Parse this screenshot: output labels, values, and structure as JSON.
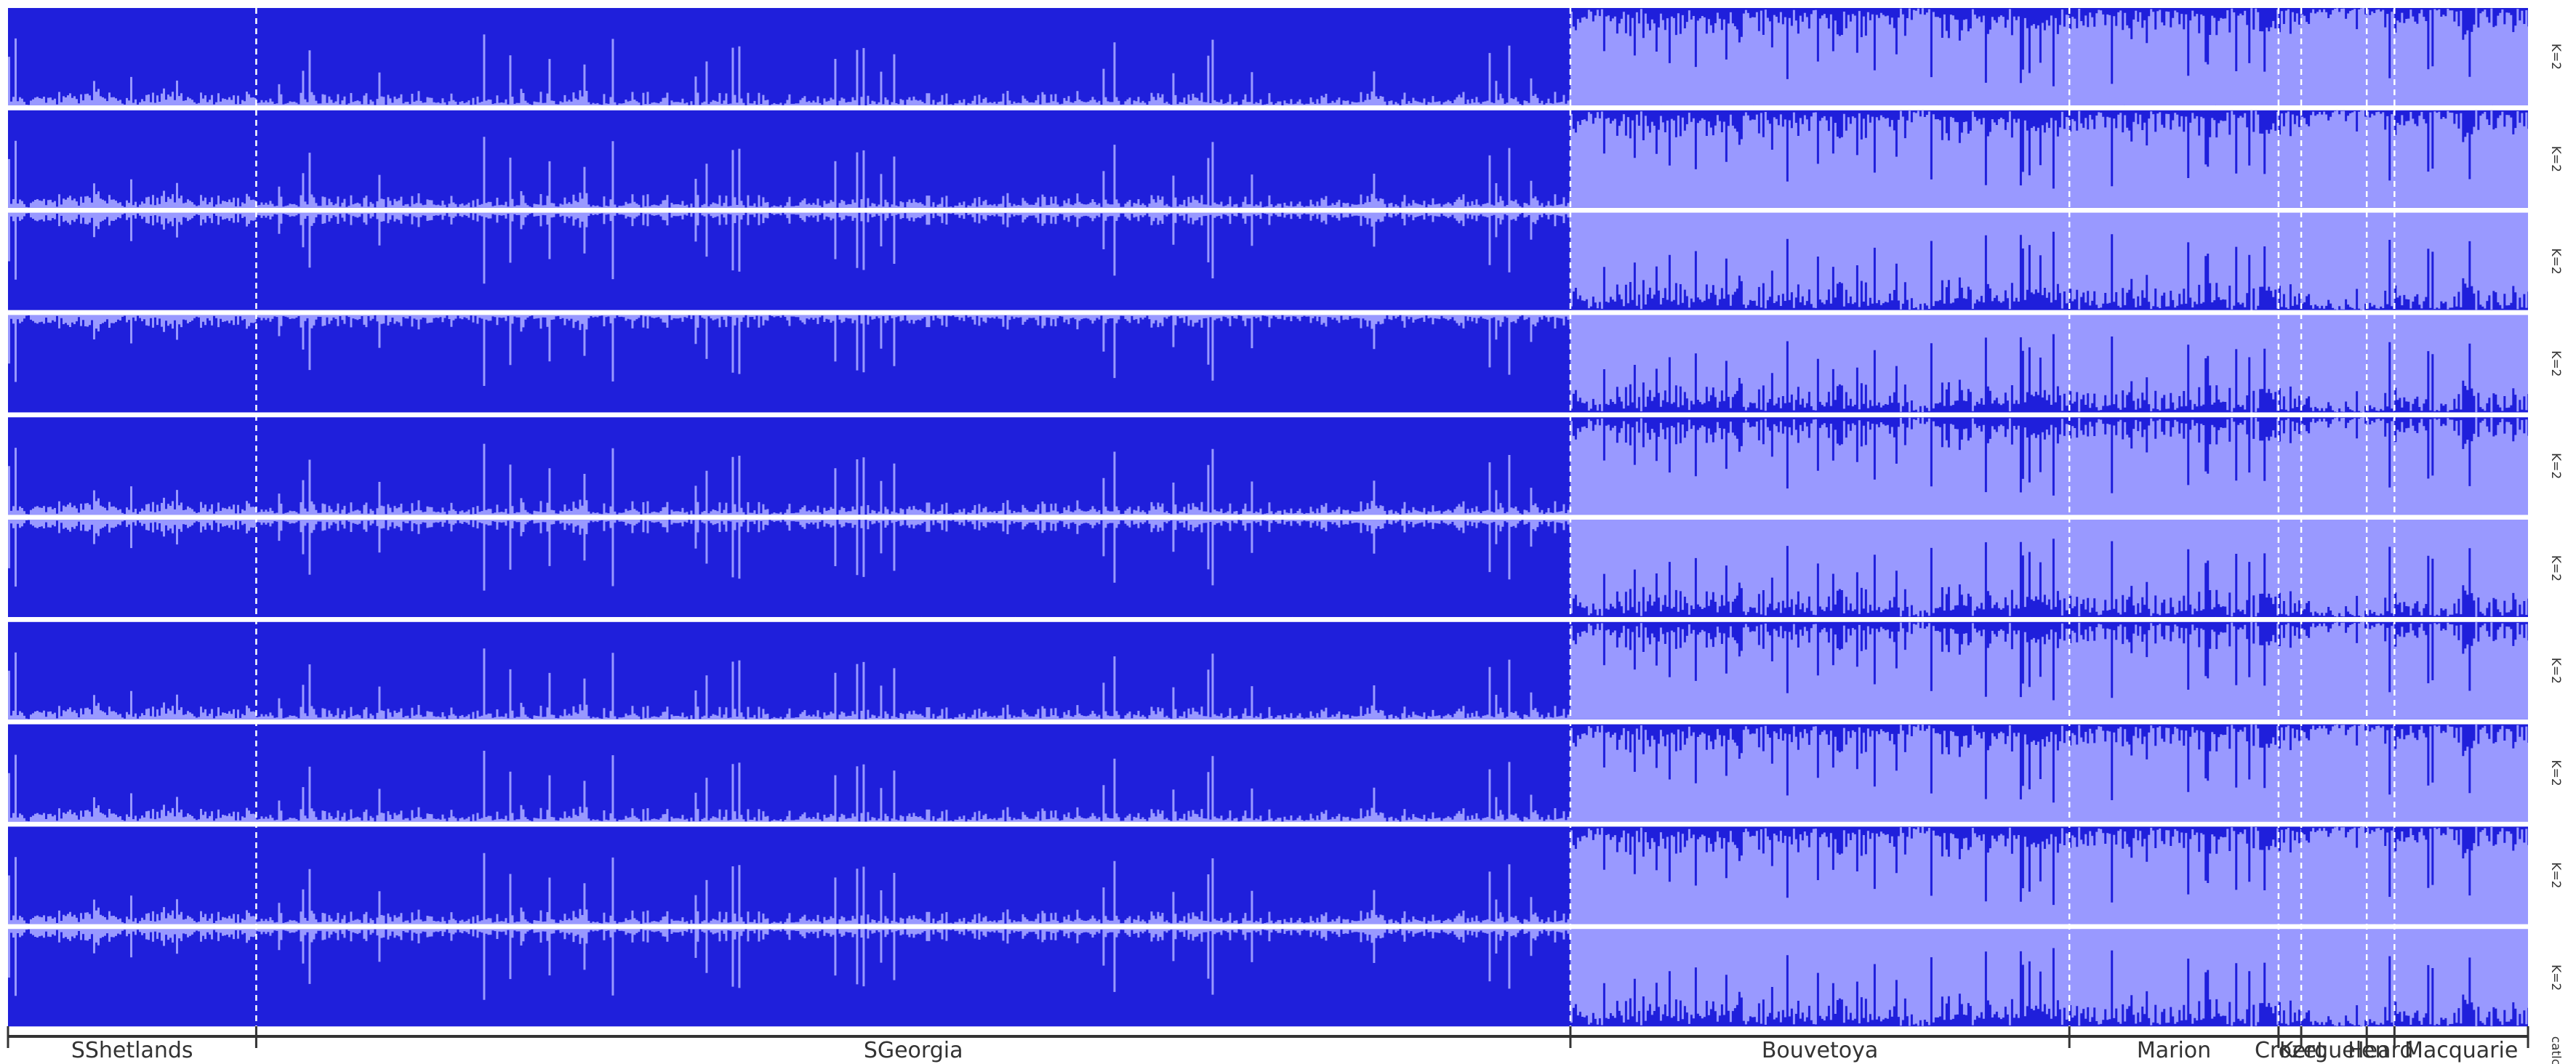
{
  "chart_data": {
    "type": "bar",
    "subtype": "stacked-admixture",
    "colors": {
      "cluster1": "#1f1fdb",
      "cluster2": "#9999ff",
      "separator": "#ffffff",
      "axis": "#333333"
    },
    "rows": [
      {
        "label": "K=2",
        "base_cluster": "cluster1",
        "grid": false
      },
      {
        "label": "K=2",
        "base_cluster": "cluster1",
        "grid": false
      },
      {
        "label": "K=2",
        "base_cluster": "cluster2",
        "grid": false
      },
      {
        "label": "K=2",
        "base_cluster": "cluster2",
        "grid": false
      },
      {
        "label": "K=2",
        "base_cluster": "cluster1",
        "grid": false
      },
      {
        "label": "K=2",
        "base_cluster": "cluster2",
        "grid": false
      },
      {
        "label": "K=2",
        "base_cluster": "cluster1",
        "grid": false
      },
      {
        "label": "K=2",
        "base_cluster": "cluster1",
        "grid": false
      },
      {
        "label": "K=2",
        "base_cluster": "cluster1",
        "grid": false
      },
      {
        "label": "K=2",
        "base_cluster": "cluster2",
        "grid": false
      }
    ],
    "populations": [
      {
        "name": "SShetlands",
        "share": 0.0985,
        "cluster1_fraction": 0.92
      },
      {
        "name": "SGeorgia",
        "share": 0.5215,
        "cluster1_fraction": 0.96
      },
      {
        "name": "Bouvetoya",
        "share": 0.198,
        "cluster1_fraction": 0.12
      },
      {
        "name": "Marion",
        "share": 0.083,
        "cluster1_fraction": 0.07
      },
      {
        "name": "Crozet",
        "share": 0.009,
        "cluster1_fraction": 0.03
      },
      {
        "name": "Kerguelen",
        "share": 0.026,
        "cluster1_fraction": 0.02
      },
      {
        "name": "Heard",
        "share": 0.011,
        "cluster1_fraction": 0.02
      },
      {
        "name": "Macquarie",
        "share": 0.0535,
        "cluster1_fraction": 0.03
      }
    ],
    "footer_side_label": "catlc",
    "ylim": [
      0,
      1
    ]
  }
}
